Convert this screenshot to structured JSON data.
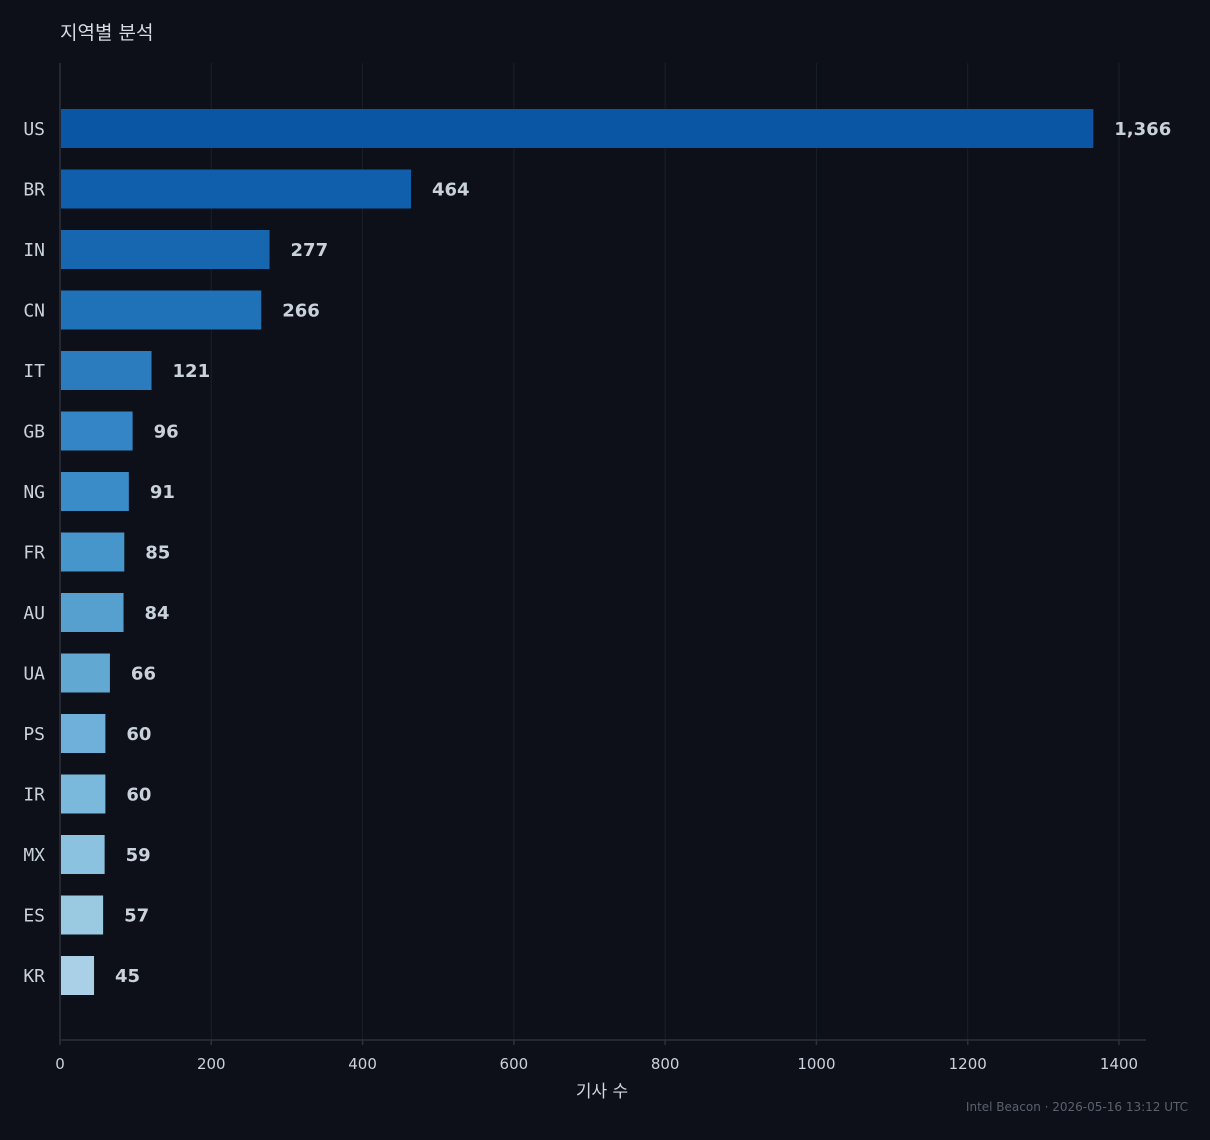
{
  "page": {
    "title": "지역별 분석",
    "footer": "Intel Beacon · 2026-05-16 13:12 UTC"
  },
  "chart_data": {
    "type": "bar",
    "orientation": "horizontal",
    "title": "지역별 분석",
    "xlabel": "기사 수",
    "ylabel": "",
    "xlim": [
      0,
      1435
    ],
    "xticks": [
      0,
      200,
      400,
      600,
      800,
      1000,
      1200,
      1400
    ],
    "grid": true,
    "categories": [
      "US",
      "BR",
      "IN",
      "CN",
      "IT",
      "GB",
      "NG",
      "FR",
      "AU",
      "UA",
      "PS",
      "IR",
      "MX",
      "ES",
      "KR"
    ],
    "values": [
      1366,
      464,
      277,
      266,
      121,
      96,
      91,
      85,
      84,
      66,
      60,
      60,
      59,
      57,
      45
    ],
    "value_labels": [
      "1,366",
      "464",
      "277",
      "266",
      "121",
      "96",
      "91",
      "85",
      "84",
      "66",
      "60",
      "60",
      "59",
      "57",
      "45"
    ],
    "bar_colors": [
      "#0a56a4",
      "#0f5fad",
      "#1766b0",
      "#2072b8",
      "#2a7cbf",
      "#3385c5",
      "#3a8cc9",
      "#4695cb",
      "#55a0cf",
      "#61a8d3",
      "#6eb0d9",
      "#7ab8dc",
      "#8bc2e0",
      "#9ac9e2",
      "#a9d0e6"
    ],
    "colors": {
      "background": "#0d1018",
      "grid": "#1a1f28",
      "axis": "#2b313c",
      "text": "#c9d1da"
    }
  }
}
